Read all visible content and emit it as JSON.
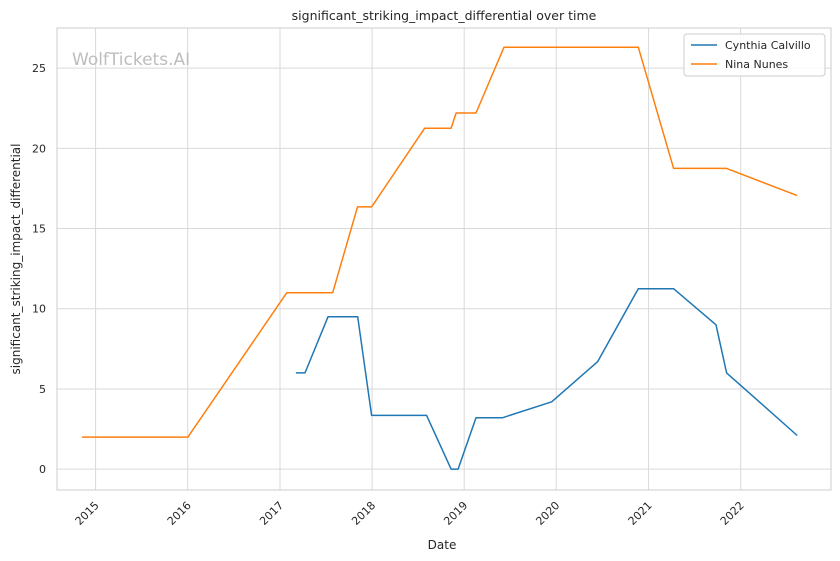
{
  "chart_data": {
    "type": "line",
    "title": "significant_striking_impact_differential over time",
    "xlabel": "Date",
    "ylabel": "significant_striking_impact_differential",
    "watermark": "WolfTickets.AI",
    "xlim": [
      "2014-08-01",
      "2022-12-25"
    ],
    "ylim": [
      -1.3,
      27.5
    ],
    "x_ticks": [
      "2015-01-01",
      "2016-01-01",
      "2017-01-01",
      "2018-01-01",
      "2019-01-01",
      "2020-01-01",
      "2021-01-01",
      "2022-01-01"
    ],
    "x_tick_labels": [
      "2015",
      "2016",
      "2017",
      "2018",
      "2019",
      "2020",
      "2021",
      "2022"
    ],
    "y_ticks": [
      0,
      5,
      10,
      15,
      20,
      25
    ],
    "y_tick_labels": [
      "0",
      "5",
      "10",
      "15",
      "20",
      "25"
    ],
    "grid": true,
    "legend_position": "top-right",
    "series": [
      {
        "name": "Cynthia Calvillo",
        "color": "#1f77b4",
        "points": [
          [
            "2017-03-05",
            6.0
          ],
          [
            "2017-04-10",
            6.0
          ],
          [
            "2017-07-10",
            9.5
          ],
          [
            "2017-11-05",
            9.5
          ],
          [
            "2017-12-30",
            3.35
          ],
          [
            "2018-08-05",
            3.35
          ],
          [
            "2018-11-10",
            0.0
          ],
          [
            "2018-12-08",
            0.0
          ],
          [
            "2019-02-17",
            3.2
          ],
          [
            "2019-06-01",
            3.2
          ],
          [
            "2019-12-14",
            4.2
          ],
          [
            "2020-06-13",
            6.7
          ],
          [
            "2020-11-21",
            11.25
          ],
          [
            "2021-04-10",
            11.25
          ],
          [
            "2021-09-25",
            9.0
          ],
          [
            "2021-11-06",
            6.0
          ],
          [
            "2022-08-13",
            2.1
          ]
        ]
      },
      {
        "name": "Nina Nunes",
        "color": "#ff7f0e",
        "points": [
          [
            "2014-11-08",
            2.0
          ],
          [
            "2016-01-02",
            2.0
          ],
          [
            "2017-01-28",
            11.0
          ],
          [
            "2017-07-29",
            11.0
          ],
          [
            "2017-11-04",
            16.35
          ],
          [
            "2017-12-30",
            16.35
          ],
          [
            "2018-07-28",
            21.25
          ],
          [
            "2018-11-10",
            21.25
          ],
          [
            "2018-11-30",
            22.2
          ],
          [
            "2019-02-17",
            22.2
          ],
          [
            "2019-06-08",
            26.3
          ],
          [
            "2020-11-21",
            26.3
          ],
          [
            "2021-04-10",
            18.75
          ],
          [
            "2021-11-06",
            18.75
          ],
          [
            "2022-08-13",
            17.05
          ]
        ]
      }
    ]
  }
}
